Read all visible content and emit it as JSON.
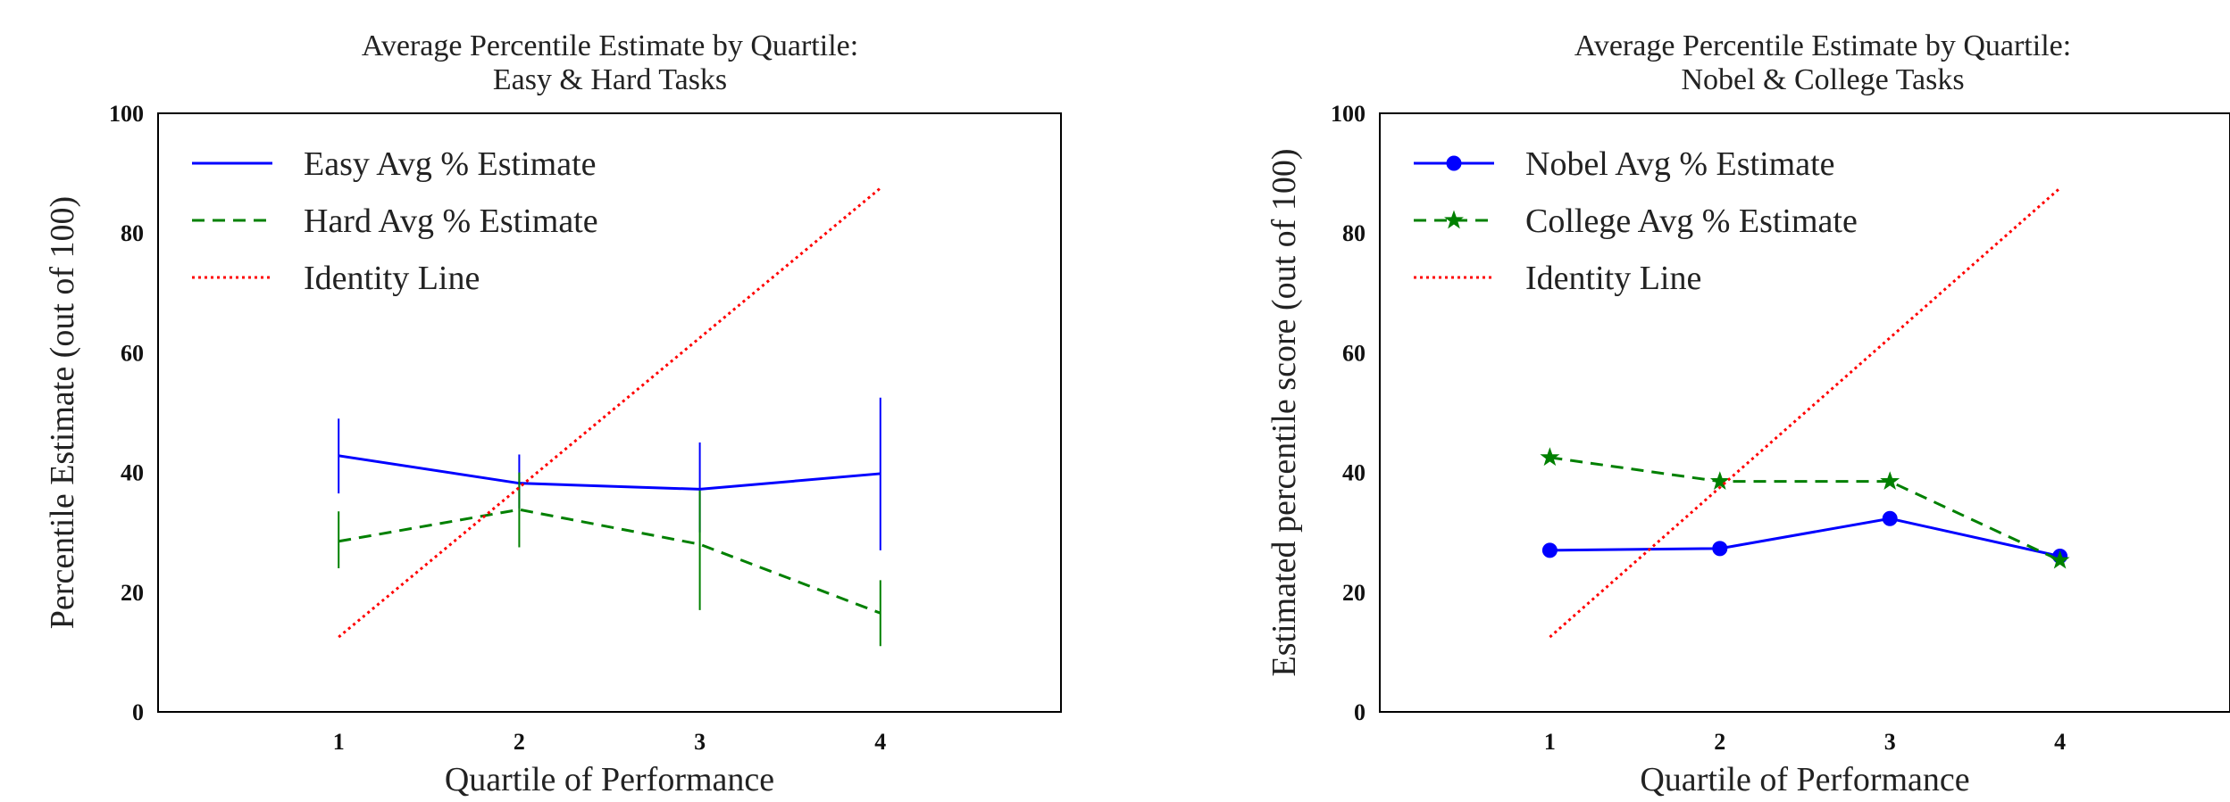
{
  "chart_data": [
    {
      "type": "line",
      "title_lines": [
        "Average Percentile Estimate by Quartile:",
        "Easy & Hard Tasks"
      ],
      "xlabel": "Quartile of Performance",
      "ylabel": "Percentile Estimate (out of 100)",
      "xlim": [
        0,
        5
      ],
      "ylim": [
        0,
        100
      ],
      "xticks": [
        "1",
        "2",
        "3",
        "4"
      ],
      "yticks": [
        "0",
        "20",
        "40",
        "60",
        "80",
        "100"
      ],
      "grid": false,
      "legend_position": "top-left",
      "x": [
        1,
        2,
        3,
        4
      ],
      "series": [
        {
          "name": "Easy Avg % Estimate",
          "color": "#0000ff",
          "style": "solid",
          "marker": "none",
          "values": [
            42.8,
            38.2,
            37.2,
            39.8
          ],
          "error_low": [
            36.5,
            34.0,
            30.0,
            27.0
          ],
          "error_high": [
            49.0,
            43.0,
            45.0,
            52.5
          ]
        },
        {
          "name": "Hard Avg % Estimate",
          "color": "#008000",
          "style": "dashed",
          "marker": "none",
          "values": [
            28.5,
            33.8,
            28.0,
            16.5
          ],
          "error_low": [
            24.0,
            27.5,
            17.0,
            11.0
          ],
          "error_high": [
            33.5,
            40.0,
            37.0,
            22.0
          ]
        },
        {
          "name": "Identity Line",
          "color": "#ff0000",
          "style": "dotted",
          "marker": "none",
          "values": [
            12.5,
            37.5,
            62.5,
            87.5
          ]
        }
      ]
    },
    {
      "type": "line",
      "title_lines": [
        "Average Percentile Estimate by Quartile:",
        "Nobel & College Tasks"
      ],
      "xlabel": "Quartile of Performance",
      "ylabel": "Estimated percentile score (out of 100)",
      "xlim": [
        0,
        5
      ],
      "ylim": [
        0,
        100
      ],
      "xticks": [
        "1",
        "2",
        "3",
        "4"
      ],
      "yticks": [
        "0",
        "20",
        "40",
        "60",
        "80",
        "100"
      ],
      "grid": false,
      "legend_position": "top-left",
      "x": [
        1,
        2,
        3,
        4
      ],
      "series": [
        {
          "name": "Nobel Avg % Estimate",
          "color": "#0000ff",
          "style": "solid",
          "marker": "circle",
          "values": [
            27.0,
            27.3,
            32.3,
            26.0
          ]
        },
        {
          "name": "College Avg % Estimate",
          "color": "#008000",
          "style": "dashed",
          "marker": "star",
          "values": [
            42.5,
            38.5,
            38.5,
            25.3
          ]
        },
        {
          "name": "Identity Line",
          "color": "#ff0000",
          "style": "dotted",
          "marker": "none",
          "values": [
            12.5,
            37.5,
            62.5,
            87.5
          ]
        }
      ]
    }
  ]
}
